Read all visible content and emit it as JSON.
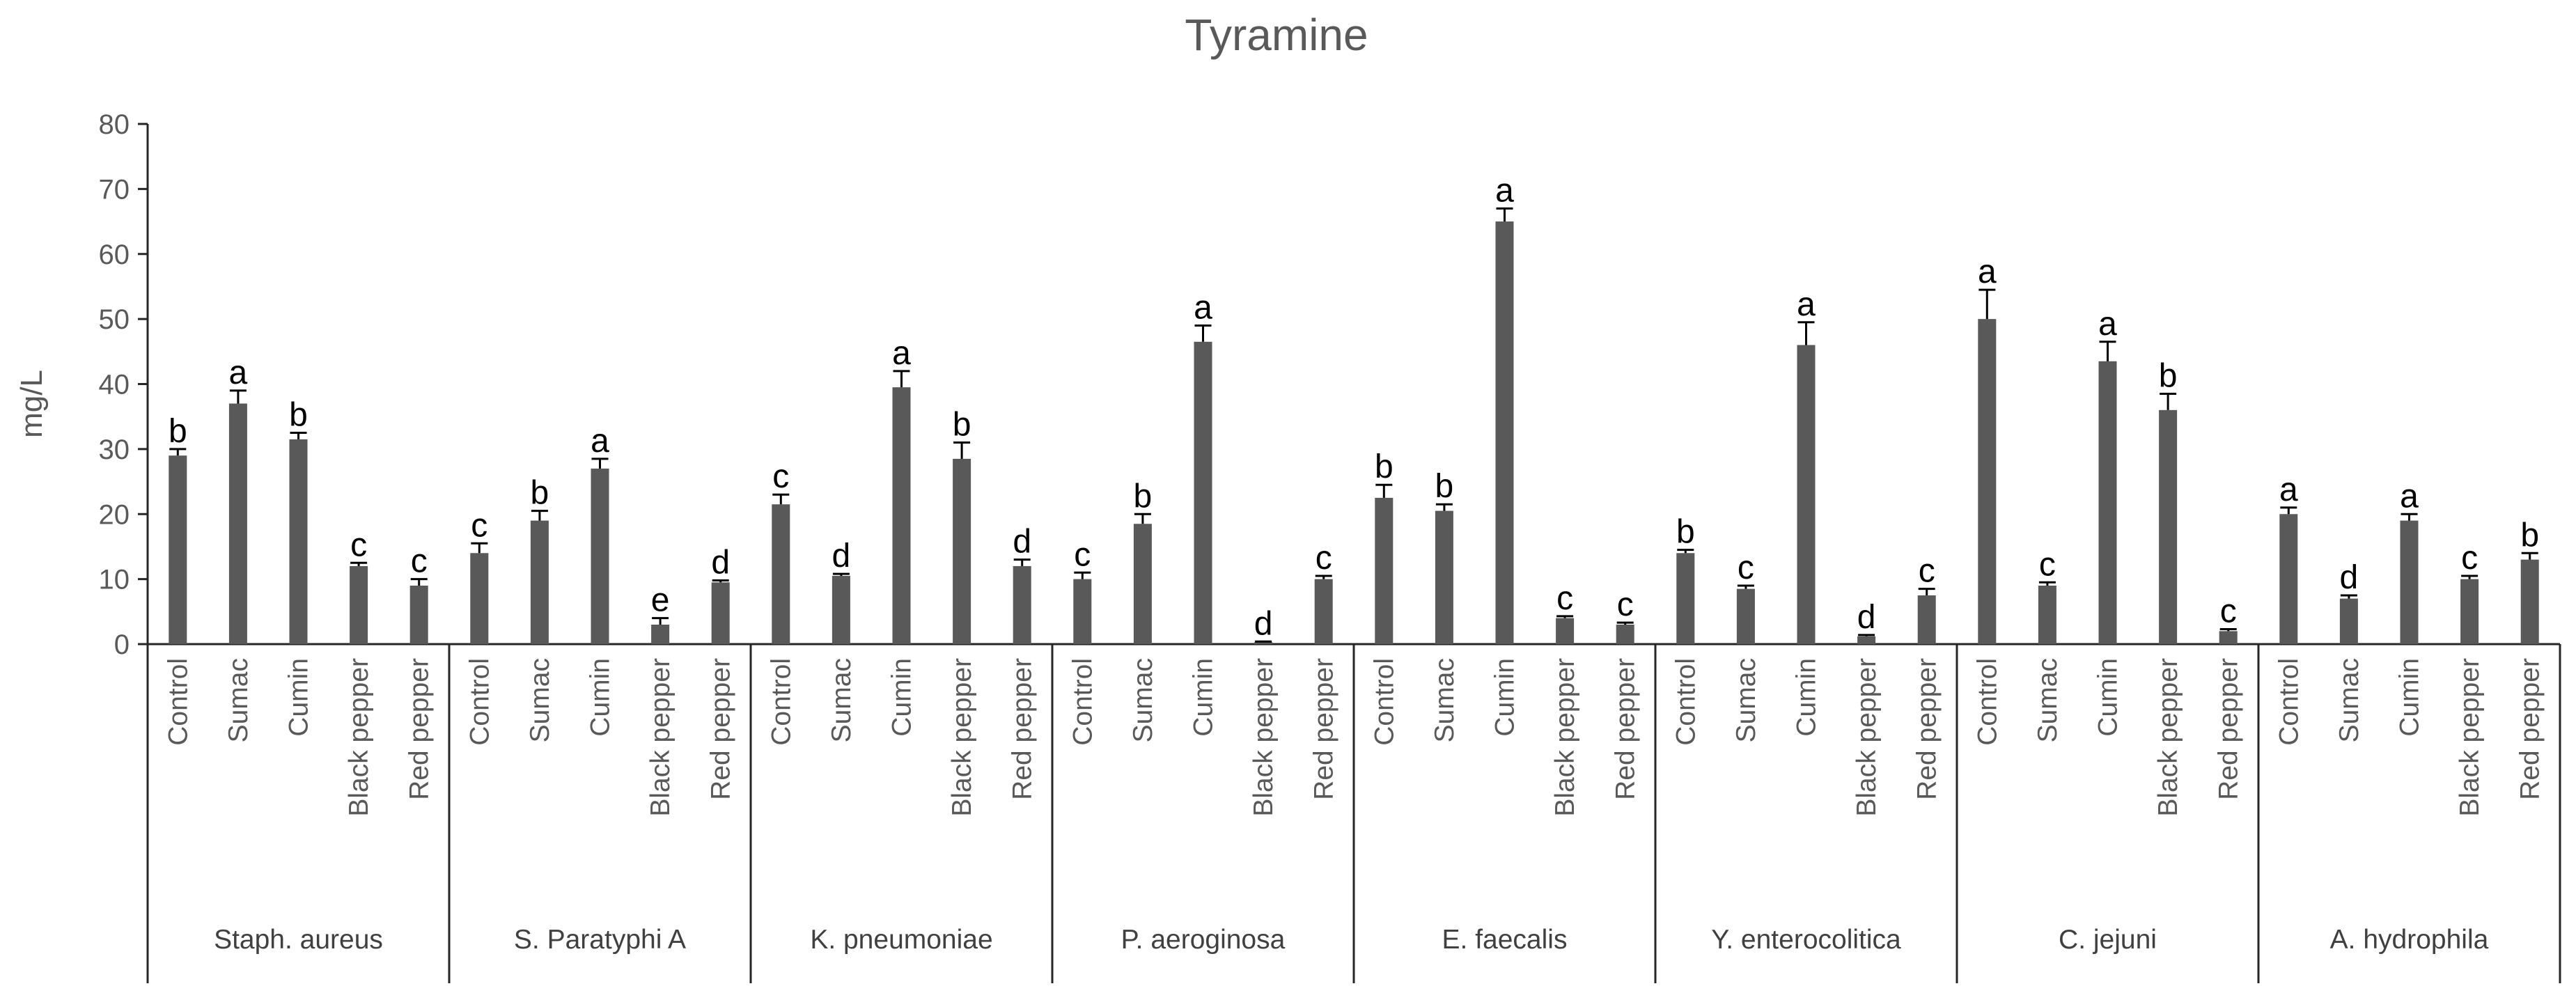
{
  "chart_data": {
    "type": "bar",
    "title": "Tyramine",
    "ylabel": "mg/L",
    "xlabel": "",
    "ylim": [
      0,
      80
    ],
    "yticks": [
      0,
      10,
      20,
      30,
      40,
      50,
      60,
      70,
      80
    ],
    "grid": false,
    "legend": "none",
    "bar_color": "#595959",
    "groups": [
      {
        "name": "Staph. aureus",
        "bars": [
          {
            "label": "Control",
            "value": 29,
            "error": 1,
            "sig": "b"
          },
          {
            "label": "Sumac",
            "value": 37,
            "error": 2,
            "sig": "a"
          },
          {
            "label": "Cumin",
            "value": 31.5,
            "error": 1,
            "sig": "b"
          },
          {
            "label": "Black pepper",
            "value": 12,
            "error": 0.5,
            "sig": "c"
          },
          {
            "label": "Red pepper",
            "value": 9,
            "error": 1,
            "sig": "c"
          }
        ]
      },
      {
        "name": "S. Paratyphi A",
        "bars": [
          {
            "label": "Control",
            "value": 14,
            "error": 1.5,
            "sig": "c"
          },
          {
            "label": "Sumac",
            "value": 19,
            "error": 1.5,
            "sig": "b"
          },
          {
            "label": "Cumin",
            "value": 27,
            "error": 1.5,
            "sig": "a"
          },
          {
            "label": "Black pepper",
            "value": 3,
            "error": 1,
            "sig": "e"
          },
          {
            "label": "Red pepper",
            "value": 9.5,
            "error": 0.3,
            "sig": "d"
          }
        ]
      },
      {
        "name": "K. pneumoniae",
        "bars": [
          {
            "label": "Control",
            "value": 21.5,
            "error": 1.5,
            "sig": "c"
          },
          {
            "label": "Sumac",
            "value": 10.5,
            "error": 0.3,
            "sig": "d"
          },
          {
            "label": "Cumin",
            "value": 39.5,
            "error": 2.5,
            "sig": "a"
          },
          {
            "label": "Black pepper",
            "value": 28.5,
            "error": 2.5,
            "sig": "b"
          },
          {
            "label": "Red pepper",
            "value": 12,
            "error": 1,
            "sig": "d"
          }
        ]
      },
      {
        "name": "P. aeroginosa",
        "bars": [
          {
            "label": "Control",
            "value": 10,
            "error": 1,
            "sig": "c"
          },
          {
            "label": "Sumac",
            "value": 18.5,
            "error": 1.5,
            "sig": "b"
          },
          {
            "label": "Cumin",
            "value": 46.5,
            "error": 2.5,
            "sig": "a"
          },
          {
            "label": "Black pepper",
            "value": 0.3,
            "error": 0.1,
            "sig": "d"
          },
          {
            "label": "Red pepper",
            "value": 10,
            "error": 0.5,
            "sig": "c"
          }
        ]
      },
      {
        "name": "E. faecalis",
        "bars": [
          {
            "label": "Control",
            "value": 22.5,
            "error": 2,
            "sig": "b"
          },
          {
            "label": "Sumac",
            "value": 20.5,
            "error": 1,
            "sig": "b"
          },
          {
            "label": "Cumin",
            "value": 65,
            "error": 2,
            "sig": "a"
          },
          {
            "label": "Black pepper",
            "value": 4,
            "error": 0.3,
            "sig": "c"
          },
          {
            "label": "Red pepper",
            "value": 3,
            "error": 0.3,
            "sig": "c"
          }
        ]
      },
      {
        "name": "Y. enterocolitica",
        "bars": [
          {
            "label": "Control",
            "value": 14,
            "error": 0.5,
            "sig": "b"
          },
          {
            "label": "Sumac",
            "value": 8.5,
            "error": 0.5,
            "sig": "c"
          },
          {
            "label": "Cumin",
            "value": 46,
            "error": 3.5,
            "sig": "a"
          },
          {
            "label": "Black pepper",
            "value": 1.2,
            "error": 0.2,
            "sig": "d"
          },
          {
            "label": "Red pepper",
            "value": 7.5,
            "error": 1,
            "sig": "c"
          }
        ]
      },
      {
        "name": "C. jejuni",
        "bars": [
          {
            "label": "Control",
            "value": 50,
            "error": 4.5,
            "sig": "a"
          },
          {
            "label": "Sumac",
            "value": 9,
            "error": 0.5,
            "sig": "c"
          },
          {
            "label": "Cumin",
            "value": 43.5,
            "error": 3,
            "sig": "a"
          },
          {
            "label": "Black pepper",
            "value": 36,
            "error": 2.5,
            "sig": "b"
          },
          {
            "label": "Red pepper",
            "value": 2,
            "error": 0.3,
            "sig": "c"
          }
        ]
      },
      {
        "name": "A. hydrophila",
        "bars": [
          {
            "label": "Control",
            "value": 20,
            "error": 1,
            "sig": "a"
          },
          {
            "label": "Sumac",
            "value": 7,
            "error": 0.5,
            "sig": "d"
          },
          {
            "label": "Cumin",
            "value": 19,
            "error": 1,
            "sig": "a"
          },
          {
            "label": "Black pepper",
            "value": 10,
            "error": 0.5,
            "sig": "c"
          },
          {
            "label": "Red pepper",
            "value": 13,
            "error": 1,
            "sig": "b"
          }
        ]
      }
    ]
  }
}
